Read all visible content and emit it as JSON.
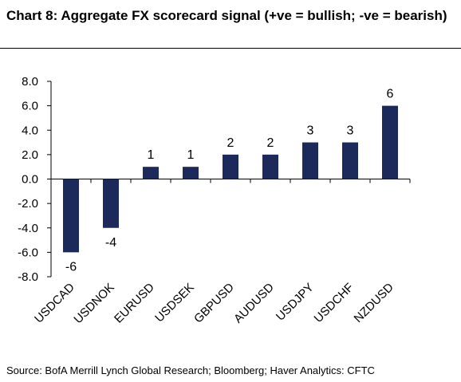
{
  "title": "Chart 8: Aggregate FX scorecard signal (+ve = bullish; -ve = bearish)",
  "source": "Source: BofA Merrill Lynch Global Research; Bloomberg; Haver Analytics: CFTC",
  "colors": {
    "bar": "#1b2a5a",
    "axis": "#000000"
  },
  "chart_data": {
    "type": "bar",
    "title": "Chart 8: Aggregate FX scorecard signal (+ve = bullish; -ve = bearish)",
    "categories": [
      "USDCAD",
      "USDNOK",
      "EURUSD",
      "USDSEK",
      "GBPUSD",
      "AUDUSD",
      "USDJPY",
      "USDCHF",
      "NZDUSD"
    ],
    "values": [
      -6,
      -4,
      1,
      1,
      2,
      2,
      3,
      3,
      6
    ],
    "data_labels": [
      "-6",
      "-4",
      "1",
      "1",
      "2",
      "2",
      "3",
      "3",
      "6"
    ],
    "ylim": [
      -8,
      8
    ],
    "yticks": [
      8,
      6,
      4,
      2,
      0,
      -2,
      -4,
      -6,
      -8
    ],
    "ytick_labels": [
      "8.0",
      "6.0",
      "4.0",
      "2.0",
      "0.0",
      "-2.0",
      "-4.0",
      "-6.0",
      "-8.0"
    ],
    "xlabel": "",
    "ylabel": "",
    "grid": false,
    "legend": "none"
  }
}
